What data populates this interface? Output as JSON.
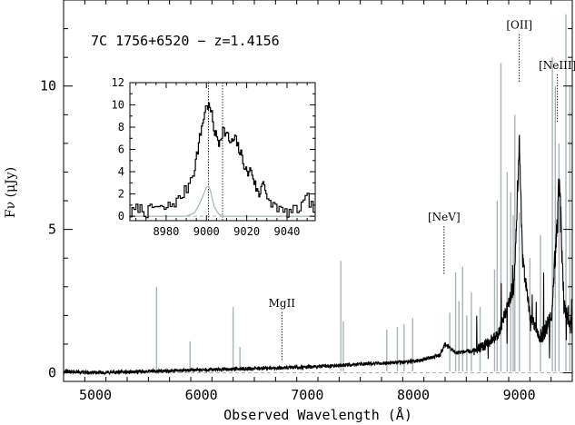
{
  "chart_data": [
    {
      "type": "line",
      "title": "7C 1756+6520 − z=1.4156",
      "xlabel": "Observed Wavelength (Å)",
      "ylabel": "Fν (μJy)",
      "xlim": [
        4700,
        9500
      ],
      "ylim": [
        -0.3,
        13
      ],
      "xticks": [
        5000,
        6000,
        7000,
        8000,
        9000
      ],
      "xtick_labels": [
        "5000",
        "6000",
        "7000",
        "8000",
        "9000"
      ],
      "yticks": [
        0,
        5,
        10
      ],
      "ytick_labels": [
        "0",
        "5",
        "10"
      ],
      "grid": false,
      "series": [
        {
          "role": "spectrum",
          "color": "#000000",
          "anchors": [
            [
              4700,
              0.05
            ],
            [
              5000,
              0.0
            ],
            [
              5500,
              0.05
            ],
            [
              6000,
              0.1
            ],
            [
              6500,
              0.15
            ],
            [
              7000,
              0.2
            ],
            [
              7500,
              0.3
            ],
            [
              7800,
              0.35
            ],
            [
              8000,
              0.4
            ],
            [
              8250,
              0.6
            ],
            [
              8300,
              1.0
            ],
            [
              8400,
              0.7
            ],
            [
              8600,
              0.8
            ],
            [
              8800,
              1.3
            ],
            [
              8950,
              3.0
            ],
            [
              9000,
              8.0
            ],
            [
              9030,
              4.0
            ],
            [
              9100,
              2.0
            ],
            [
              9200,
              1.2
            ],
            [
              9300,
              1.8
            ],
            [
              9380,
              6.5
            ],
            [
              9420,
              2.5
            ],
            [
              9500,
              1.5
            ]
          ]
        },
        {
          "role": "sky lines",
          "color": "#a9b4b4",
          "lines": [
            [
              5577,
              3.0
            ],
            [
              5893,
              1.1
            ],
            [
              6300,
              2.3
            ],
            [
              6364,
              0.9
            ],
            [
              7316,
              3.9
            ],
            [
              7340,
              1.8
            ],
            [
              7750,
              1.5
            ],
            [
              7850,
              1.6
            ],
            [
              7913,
              1.7
            ],
            [
              7994,
              1.9
            ],
            [
              8344,
              2.1
            ],
            [
              8399,
              3.5
            ],
            [
              8430,
              2.5
            ],
            [
              8465,
              3.7
            ],
            [
              8505,
              2.0
            ],
            [
              8548,
              2.8
            ],
            [
              8630,
              2.3
            ],
            [
              8767,
              3.6
            ],
            [
              8791,
              6.0
            ],
            [
              8827,
              10.8
            ],
            [
              8886,
              7.0
            ],
            [
              8919,
              6.3
            ],
            [
              8943,
              5.5
            ],
            [
              8958,
              9.0
            ],
            [
              9001,
              5.6
            ],
            [
              9100,
              4.0
            ],
            [
              9200,
              4.8
            ],
            [
              9312,
              11.0
            ],
            [
              9340,
              10.0
            ],
            [
              9375,
              8.0
            ],
            [
              9440,
              12.5
            ],
            [
              9477,
              10.0
            ]
          ]
        }
      ],
      "annotations": [
        {
          "label": "MgII",
          "x": 6760,
          "y_top": 2.3
        },
        {
          "label": "[NeV]",
          "x": 8290,
          "y_top": 5.3
        },
        {
          "label": "[OII]",
          "x": 9000,
          "y_top": 12.0
        },
        {
          "label": "[NeIII]",
          "x": 9360,
          "y_top": 10.6
        }
      ]
    },
    {
      "type": "line",
      "title": "",
      "xlim": [
        8962,
        9054
      ],
      "ylim": [
        -0.4,
        12
      ],
      "xticks": [
        8980,
        9000,
        9020,
        9040
      ],
      "xtick_labels": [
        "8980",
        "9000",
        "9020",
        "9040"
      ],
      "yticks": [
        0,
        2,
        4,
        6,
        8,
        10,
        12
      ],
      "ytick_labels": [
        "0",
        "2",
        "4",
        "6",
        "8",
        "10",
        "12"
      ],
      "series": [
        {
          "role": "spectrum",
          "color": "#000000",
          "x": [
            8962,
            8966,
            8970,
            8974,
            8978,
            8982,
            8986,
            8990,
            8994,
            8996,
            8998,
            9000,
            9002,
            9004,
            9006,
            9008,
            9010,
            9012,
            9014,
            9016,
            9018,
            9020,
            9022,
            9024,
            9026,
            9028,
            9030,
            9034,
            9038,
            9042,
            9046,
            9050,
            9054
          ],
          "y": [
            0.2,
            0.8,
            0.3,
            0.9,
            0.6,
            1.0,
            1.5,
            2.5,
            4.5,
            6.5,
            8.5,
            10.1,
            9.5,
            7.5,
            6.6,
            7.8,
            7.3,
            6.5,
            7.0,
            6.0,
            5.0,
            3.8,
            4.2,
            2.8,
            1.8,
            3.5,
            1.2,
            1.0,
            0.3,
            0.4,
            0.7,
            1.6,
            0.3
          ]
        },
        {
          "role": "narrow component",
          "color": "#a9b4b4",
          "x": [
            8962,
            8990,
            8994,
            8996,
            8998,
            9000,
            9001,
            9002,
            9003,
            9004,
            9006,
            9008,
            9054
          ],
          "y": [
            0,
            0,
            0.3,
            0.9,
            1.7,
            2.6,
            2.7,
            2.3,
            1.5,
            0.8,
            0.2,
            0,
            0
          ]
        }
      ],
      "reference_lines": [
        9001,
        9008
      ]
    }
  ]
}
